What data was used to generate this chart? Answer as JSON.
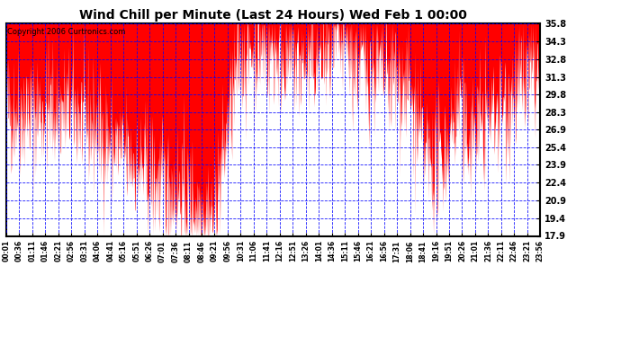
{
  "title": "Wind Chill per Minute (Last 24 Hours) Wed Feb 1 00:00",
  "copyright": "Copyright 2006 Curtronics.com",
  "yticks": [
    35.8,
    34.3,
    32.8,
    31.3,
    29.8,
    28.3,
    26.9,
    25.4,
    23.9,
    22.4,
    20.9,
    19.4,
    17.9
  ],
  "ymin": 17.9,
  "ymax": 35.8,
  "xtick_labels": [
    "00:01",
    "00:36",
    "01:11",
    "01:46",
    "02:21",
    "02:56",
    "03:31",
    "04:06",
    "04:41",
    "05:16",
    "05:51",
    "06:26",
    "07:01",
    "07:36",
    "08:11",
    "08:46",
    "09:21",
    "09:56",
    "10:31",
    "11:06",
    "11:41",
    "12:16",
    "12:51",
    "13:26",
    "14:01",
    "14:36",
    "15:11",
    "15:46",
    "16:21",
    "16:56",
    "17:31",
    "18:06",
    "18:41",
    "19:16",
    "19:51",
    "20:26",
    "21:01",
    "21:36",
    "22:11",
    "22:46",
    "23:21",
    "23:56"
  ],
  "bg_color": "#ffffff",
  "plot_bg_color": "#ffffff",
  "line_color": "#ff0000",
  "grid_color": "#0000ff",
  "title_color": "#000000",
  "border_color": "#000000"
}
